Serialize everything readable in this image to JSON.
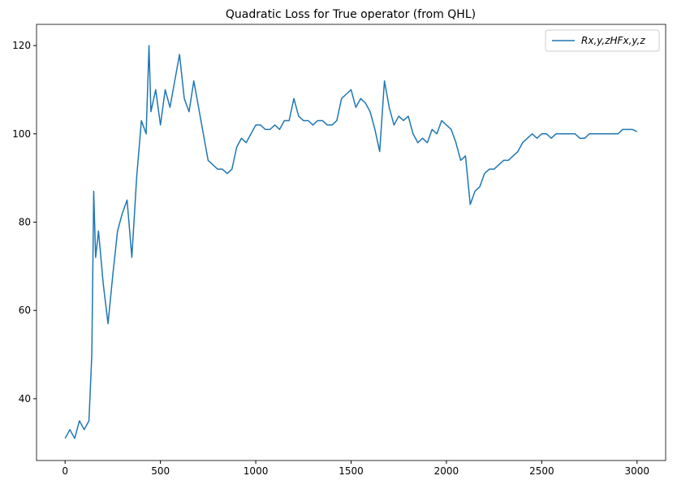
{
  "chart_data": {
    "type": "line",
    "title": "Quadratic Loss for True operator (from QHL)",
    "x": [
      0,
      25,
      50,
      75,
      100,
      125,
      140,
      150,
      160,
      175,
      200,
      225,
      250,
      275,
      300,
      325,
      350,
      375,
      400,
      425,
      440,
      450,
      475,
      500,
      525,
      550,
      575,
      600,
      625,
      650,
      675,
      700,
      725,
      750,
      775,
      800,
      825,
      850,
      875,
      900,
      925,
      950,
      975,
      1000,
      1025,
      1050,
      1075,
      1100,
      1125,
      1150,
      1175,
      1200,
      1225,
      1250,
      1275,
      1300,
      1325,
      1350,
      1375,
      1400,
      1425,
      1450,
      1475,
      1500,
      1525,
      1550,
      1575,
      1600,
      1625,
      1650,
      1675,
      1700,
      1725,
      1750,
      1775,
      1800,
      1825,
      1850,
      1875,
      1900,
      1925,
      1950,
      1975,
      2000,
      2025,
      2050,
      2075,
      2100,
      2125,
      2150,
      2175,
      2200,
      2225,
      2250,
      2275,
      2300,
      2325,
      2350,
      2375,
      2400,
      2425,
      2450,
      2475,
      2500,
      2525,
      2550,
      2575,
      2600,
      2625,
      2650,
      2675,
      2700,
      2725,
      2750,
      2775,
      2800,
      2825,
      2850,
      2875,
      2900,
      2925,
      2950,
      2975,
      3000
    ],
    "series": [
      {
        "name": "Rx,y,zHFx,y,z",
        "color": "#1f77b4",
        "values": [
          31,
          33,
          31,
          35,
          33,
          35,
          50,
          87,
          72,
          78,
          66,
          57,
          68,
          78,
          82,
          85,
          72,
          90,
          103,
          100,
          120,
          105,
          110,
          102,
          110,
          106,
          112,
          118,
          108,
          105,
          112,
          106,
          100,
          94,
          93,
          92,
          92,
          91,
          92,
          97,
          99,
          98,
          100,
          102,
          102,
          101,
          101,
          102,
          101,
          103,
          103,
          108,
          104,
          103,
          103,
          102,
          103,
          103,
          102,
          102,
          103,
          108,
          109,
          110,
          106,
          108,
          107,
          105,
          101,
          96,
          112,
          106,
          102,
          104,
          103,
          104,
          100,
          98,
          99,
          98,
          101,
          100,
          103,
          102,
          101,
          98,
          94,
          95,
          84,
          87,
          88,
          91,
          92,
          92,
          93,
          94,
          94,
          95,
          96,
          98,
          99,
          100,
          99,
          100,
          100,
          99,
          100,
          100,
          100,
          100,
          100,
          99,
          99,
          100,
          100,
          100,
          100,
          100,
          100,
          100,
          101,
          101,
          101,
          100.5
        ]
      }
    ],
    "xlim": [
      -150,
      3150
    ],
    "ylim": [
      26,
      124.8
    ],
    "xticks": [
      0,
      500,
      1000,
      1500,
      2000,
      2500,
      3000
    ],
    "yticks": [
      40,
      60,
      80,
      100,
      120
    ],
    "legend": "upper right"
  }
}
